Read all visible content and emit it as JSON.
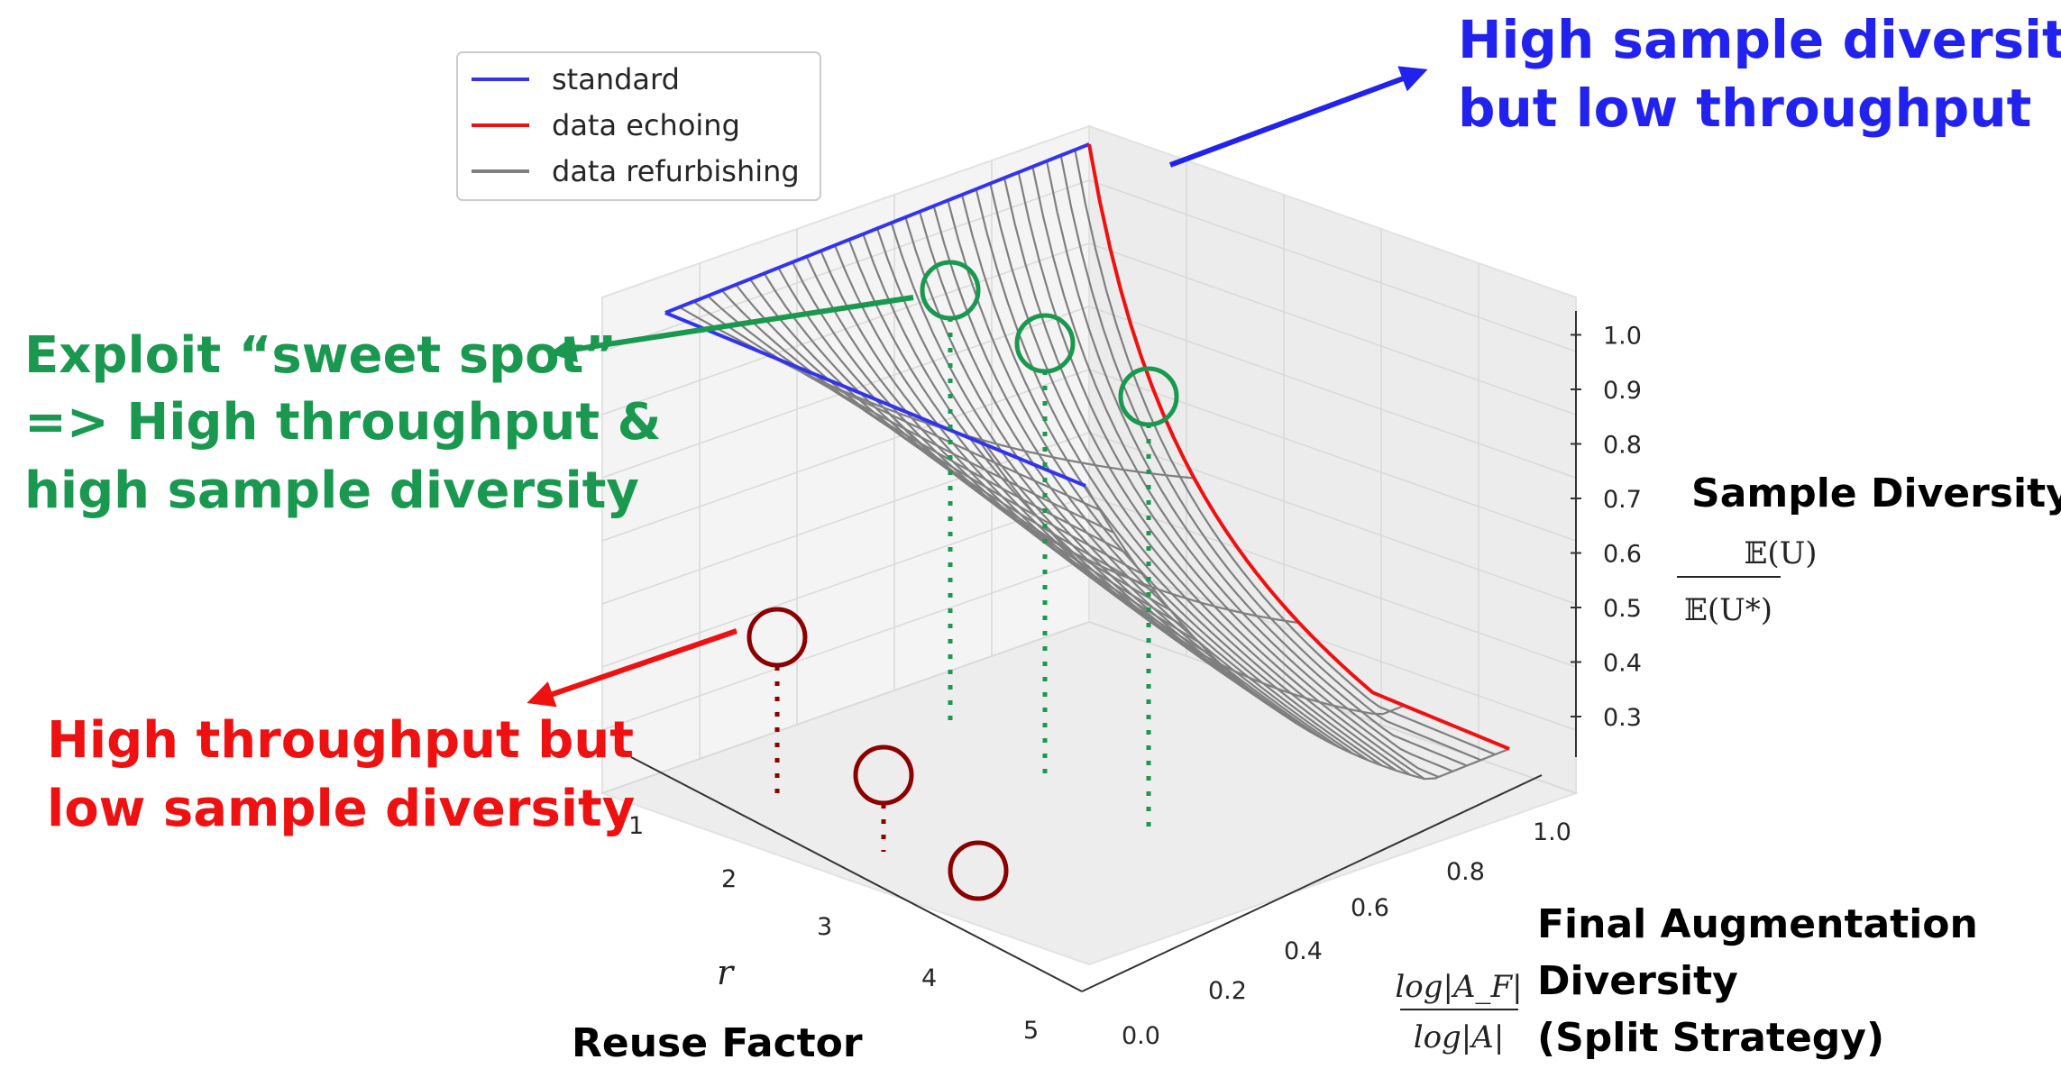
{
  "chart_data": {
    "type": "surface3d",
    "legend": {
      "placement": "top-left",
      "entries": [
        {
          "label": "standard",
          "color": "#3333ee"
        },
        {
          "label": "data echoing",
          "color": "#ee1111"
        },
        {
          "label": "data refurbishing",
          "color": "#7f7f7f"
        }
      ]
    },
    "x_axis": {
      "symbol": "r",
      "title": "Reuse Factor",
      "ticks": [
        "1",
        "2",
        "3",
        "4",
        "5"
      ],
      "range": [
        1,
        5
      ]
    },
    "y_axis": {
      "symbol_num": "log|A_F|",
      "symbol_den": "log|A|",
      "title_lines": [
        "Final Augmentation",
        "Diversity",
        "(Split Strategy)"
      ],
      "ticks": [
        "0.0",
        "0.2",
        "0.4",
        "0.6",
        "0.8",
        "1.0"
      ],
      "range": [
        0,
        1
      ]
    },
    "z_axis": {
      "title": "Sample Diversity",
      "symbol_num": "𝔼(U)",
      "symbol_den": "𝔼(U*)",
      "ticks": [
        "0.3",
        "0.4",
        "0.5",
        "0.6",
        "0.7",
        "0.8",
        "0.9",
        "1.0"
      ],
      "range": [
        0.3,
        1.0
      ]
    },
    "series": [
      {
        "name": "standard",
        "color": "#3333ee",
        "fraction": 1.0
      },
      {
        "name": "data echoing",
        "color": "#ee1111",
        "fraction": 0.0
      },
      {
        "name": "data refurbishing",
        "color": "#7f7f7f",
        "fraction_range": [
          0,
          1
        ]
      }
    ],
    "sweet_spots_r": [
      2,
      3,
      4
    ]
  },
  "annotations": {
    "standard": {
      "lines": [
        "High sample diversity",
        "but low throughput"
      ],
      "color": "#2222ee"
    },
    "sweet_spot": {
      "lines": [
        "Exploit “sweet spot”",
        "=> High throughput &",
        "high sample diversity"
      ],
      "color": "#1a9850"
    },
    "echoing": {
      "lines": [
        "High throughput but",
        "low sample diversity"
      ],
      "color": "#ee1111"
    }
  },
  "colors": {
    "green_marker": "#1a9850",
    "red_marker": "#8b0000",
    "grid": "#d9d9d9",
    "pane": "#f2f2f2"
  }
}
